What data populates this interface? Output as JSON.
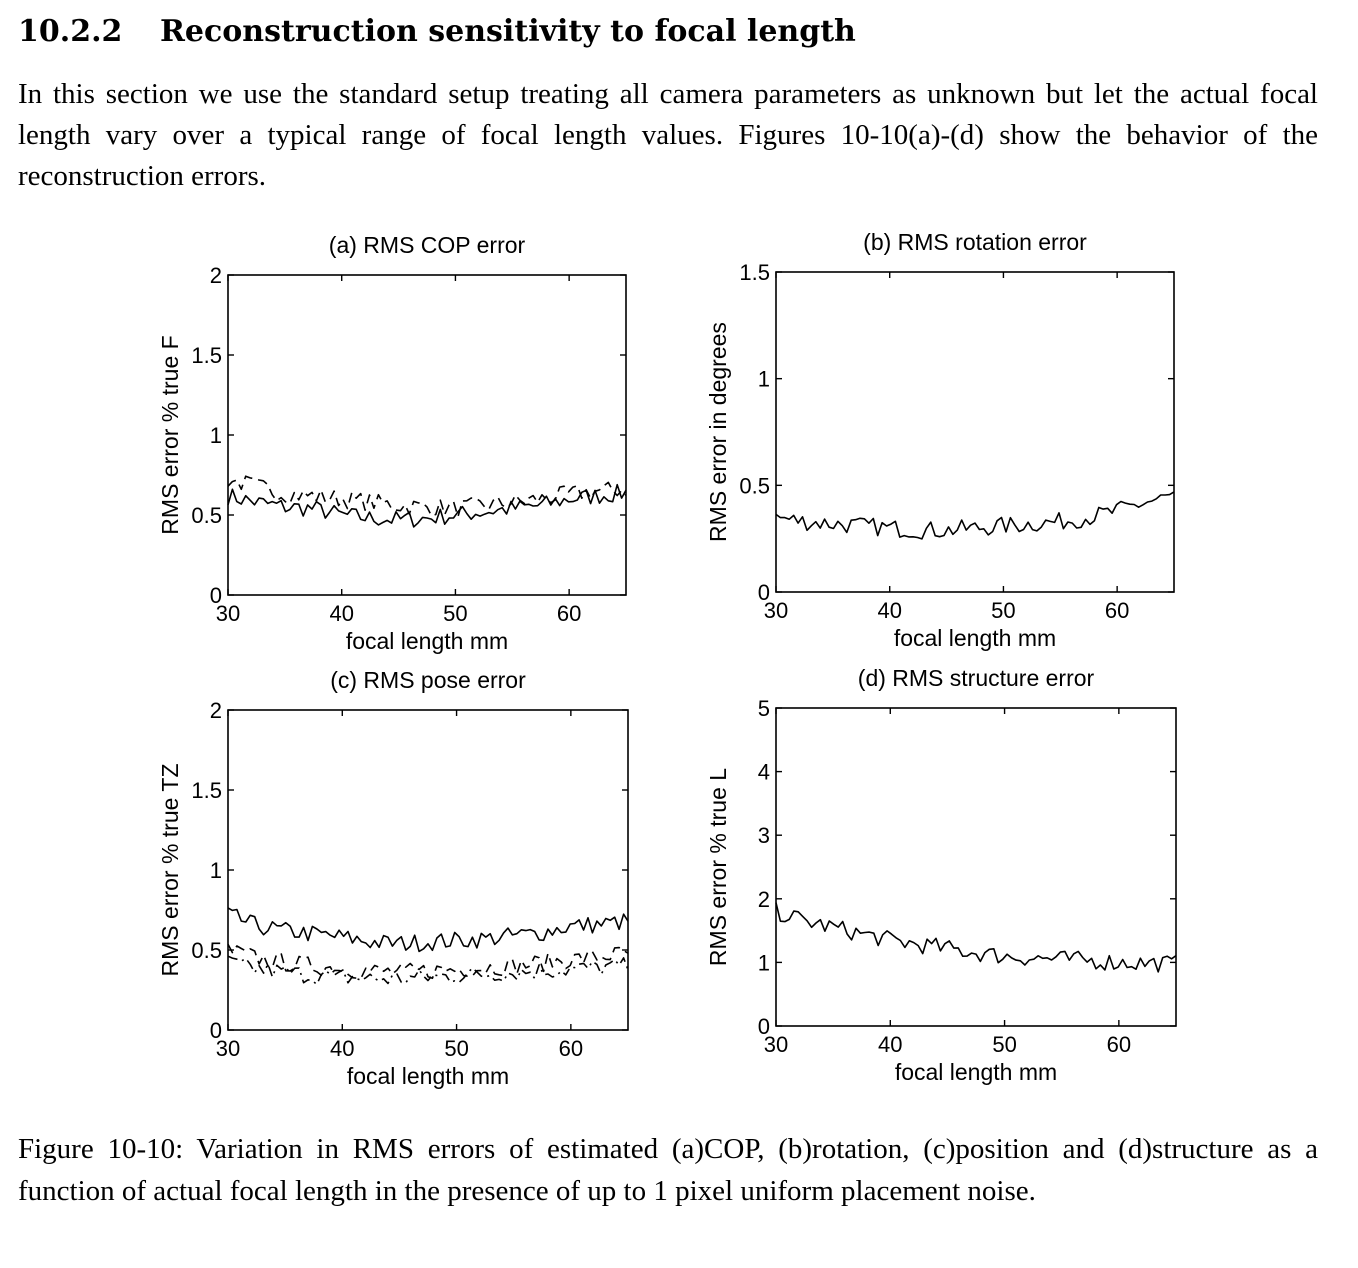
{
  "section": {
    "number": "10.2.2",
    "title": "Reconstruction sensitivity to focal length",
    "intro": "In this section we use the standard setup treating all camera parameters as unknown but let the actual focal length vary over a typical range of focal length values. Figures 10-10(a)-(d) show the behavior of the reconstruction errors."
  },
  "figure": {
    "caption": "Figure 10-10: Variation in RMS errors of estimated (a)COP, (b)rotation, (c)position and (d)structure as a function of actual focal length in the presence of up to 1 pixel uniform placement noise."
  },
  "chart_data": [
    {
      "type": "line",
      "title": "(a) RMS COP error",
      "xlabel": "focal length mm",
      "ylabel": "RMS error % true F",
      "xlim": [
        30,
        65
      ],
      "ylim": [
        0,
        2
      ],
      "xticks": [
        30,
        40,
        50,
        60
      ],
      "yticks": [
        0,
        0.5,
        1,
        1.5,
        2
      ],
      "ytick_labels": [
        "0",
        "0.5",
        "1",
        "1.5",
        "2"
      ],
      "x": [
        30,
        32.5,
        35,
        37.5,
        40,
        42.5,
        45,
        47.5,
        50,
        52.5,
        55,
        57.5,
        60,
        62.5,
        65
      ],
      "series": [
        {
          "style": "solid",
          "values": [
            0.62,
            0.58,
            0.55,
            0.54,
            0.5,
            0.48,
            0.47,
            0.48,
            0.5,
            0.52,
            0.54,
            0.56,
            0.6,
            0.62,
            0.64
          ]
        },
        {
          "style": "dashed",
          "values": [
            0.72,
            0.68,
            0.63,
            0.62,
            0.6,
            0.58,
            0.56,
            0.55,
            0.54,
            0.56,
            0.58,
            0.6,
            0.63,
            0.65,
            0.66
          ]
        }
      ]
    },
    {
      "type": "line",
      "title": "(b) RMS rotation error",
      "xlabel": "focal length mm",
      "ylabel": "RMS error in degrees",
      "xlim": [
        30,
        65
      ],
      "ylim": [
        0,
        1.5
      ],
      "xticks": [
        30,
        40,
        50,
        60
      ],
      "yticks": [
        0,
        0.5,
        1,
        1.5
      ],
      "ytick_labels": [
        "0",
        "0.5",
        "1",
        "1.5"
      ],
      "x": [
        30,
        32.5,
        35,
        37.5,
        40,
        42.5,
        45,
        47.5,
        50,
        52.5,
        55,
        57.5,
        60,
        62.5,
        65
      ],
      "series": [
        {
          "style": "solid",
          "values": [
            0.35,
            0.33,
            0.32,
            0.31,
            0.3,
            0.29,
            0.29,
            0.3,
            0.31,
            0.32,
            0.33,
            0.35,
            0.38,
            0.42,
            0.45
          ]
        }
      ]
    },
    {
      "type": "line",
      "title": "(c) RMS pose error",
      "xlabel": "focal length mm",
      "ylabel": "RMS error % true TZ",
      "xlim": [
        30,
        65
      ],
      "ylim": [
        0,
        2
      ],
      "xticks": [
        30,
        40,
        50,
        60
      ],
      "yticks": [
        0,
        0.5,
        1,
        1.5,
        2
      ],
      "ytick_labels": [
        "0",
        "0.5",
        "1",
        "1.5",
        "2"
      ],
      "x": [
        30,
        32.5,
        35,
        37.5,
        40,
        42.5,
        45,
        47.5,
        50,
        52.5,
        55,
        57.5,
        60,
        62.5,
        65
      ],
      "series": [
        {
          "style": "solid",
          "values": [
            0.72,
            0.65,
            0.62,
            0.6,
            0.58,
            0.55,
            0.54,
            0.55,
            0.56,
            0.57,
            0.59,
            0.61,
            0.65,
            0.66,
            0.68
          ]
        },
        {
          "style": "dashed",
          "values": [
            0.5,
            0.45,
            0.42,
            0.4,
            0.38,
            0.37,
            0.36,
            0.37,
            0.38,
            0.39,
            0.4,
            0.42,
            0.44,
            0.46,
            0.48
          ]
        },
        {
          "style": "dashdot",
          "values": [
            0.42,
            0.38,
            0.36,
            0.34,
            0.33,
            0.32,
            0.32,
            0.33,
            0.34,
            0.35,
            0.36,
            0.37,
            0.38,
            0.39,
            0.4
          ]
        }
      ]
    },
    {
      "type": "line",
      "title": "(d) RMS structure error",
      "xlabel": "focal length mm",
      "ylabel": "RMS error % true L",
      "xlim": [
        30,
        65
      ],
      "ylim": [
        0,
        5
      ],
      "xticks": [
        30,
        40,
        50,
        60
      ],
      "yticks": [
        0,
        1,
        2,
        3,
        4,
        5
      ],
      "ytick_labels": [
        "0",
        "1",
        "2",
        "3",
        "4",
        "5"
      ],
      "x": [
        30,
        32.5,
        35,
        37.5,
        40,
        42.5,
        45,
        47.5,
        50,
        52.5,
        55,
        57.5,
        60,
        62.5,
        65
      ],
      "series": [
        {
          "style": "solid",
          "values": [
            1.8,
            1.65,
            1.55,
            1.45,
            1.35,
            1.28,
            1.22,
            1.15,
            1.1,
            1.07,
            1.05,
            1.03,
            1.0,
            0.99,
            0.98
          ]
        }
      ]
    }
  ]
}
